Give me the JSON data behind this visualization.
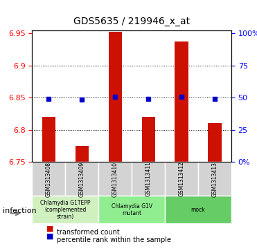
{
  "title": "GDS5635 / 219946_x_at",
  "samples": [
    "GSM1313408",
    "GSM1313409",
    "GSM1313410",
    "GSM1313411",
    "GSM1313412",
    "GSM1313413"
  ],
  "bar_values": [
    6.82,
    6.775,
    6.952,
    6.82,
    6.937,
    6.81
  ],
  "percentile_values": [
    6.848,
    6.847,
    6.851,
    6.848,
    6.851,
    6.848
  ],
  "ymin": 6.75,
  "ymax": 6.955,
  "yticks_left": [
    6.75,
    6.8,
    6.85,
    6.9,
    6.95
  ],
  "yticks_right": [
    0,
    25,
    50,
    75,
    100
  ],
  "bar_color": "#cc1100",
  "percentile_color": "#0000cc",
  "groups": [
    {
      "label": "Chlamydia G1TEPP\n(complemented\nstrain)",
      "samples": [
        0,
        1
      ],
      "color": "#d0f0c0"
    },
    {
      "label": "Chlamydia G1V\nmutant",
      "samples": [
        2,
        3
      ],
      "color": "#90ee90"
    },
    {
      "label": "mock",
      "samples": [
        4,
        5
      ],
      "color": "#66cc66"
    }
  ],
  "factor_label": "infection",
  "legend_items": [
    {
      "label": "transformed count",
      "color": "#cc1100",
      "marker": "s"
    },
    {
      "label": "percentile rank within the sample",
      "color": "#0000cc",
      "marker": "s"
    }
  ],
  "bar_width": 0.4,
  "fig_width": 3.71,
  "fig_height": 3.63,
  "dpi": 100
}
